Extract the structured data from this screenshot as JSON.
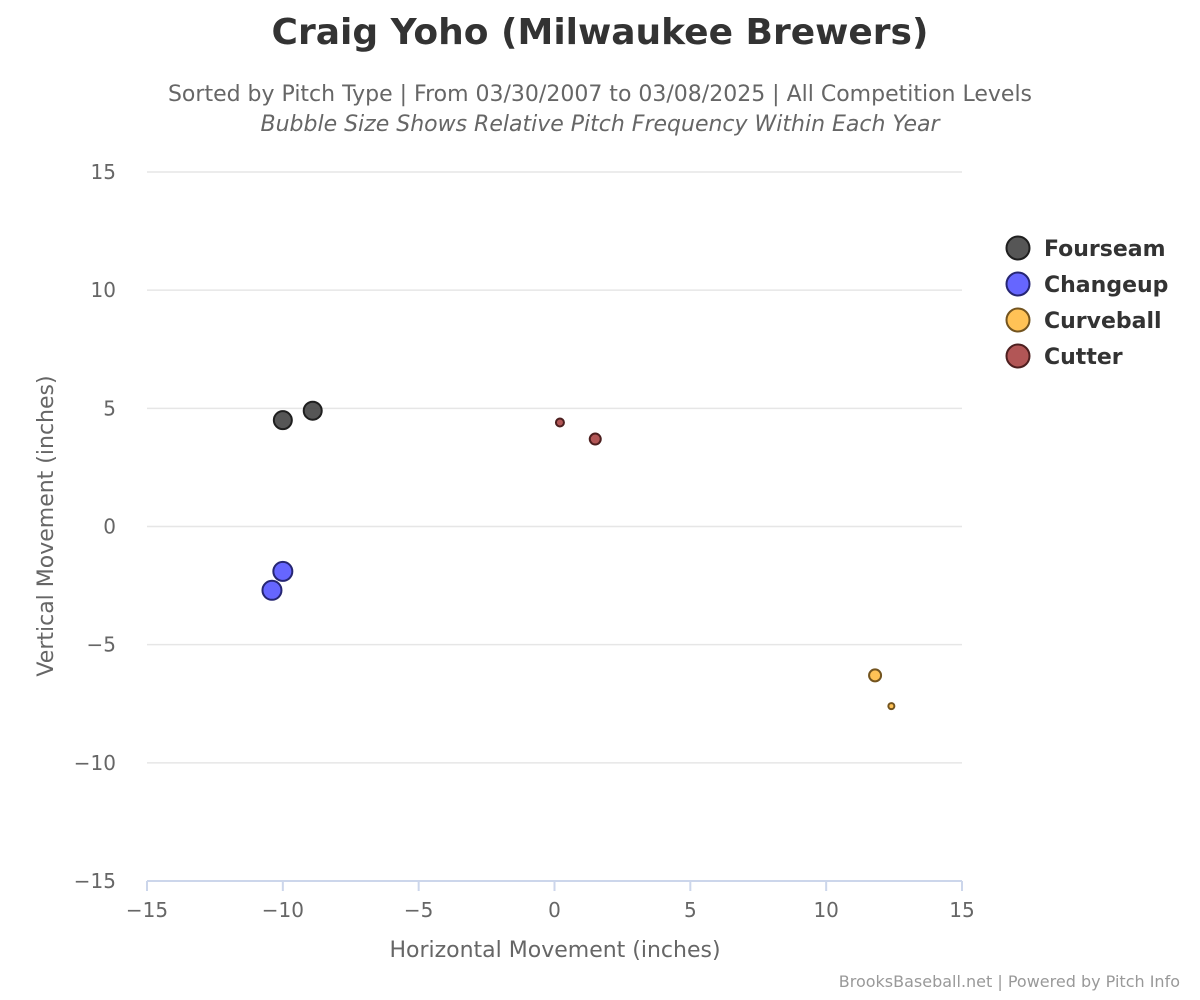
{
  "header": {
    "title": "Craig Yoho (Milwaukee Brewers)",
    "subtitle": "Sorted by Pitch Type | From 03/30/2007 to 03/08/2025 | All Competition Levels",
    "subtitle2": "Bubble Size Shows Relative Pitch Frequency Within Each Year"
  },
  "credits": "BrooksBaseball.net | Powered by Pitch Info",
  "chart_data": {
    "type": "scatter",
    "title": "Craig Yoho (Milwaukee Brewers)",
    "xlabel": "Horizontal Movement (inches)",
    "ylabel": "Vertical Movement (inches)",
    "xlim": [
      -15,
      15
    ],
    "ylim": [
      -15,
      15
    ],
    "x_ticks": [
      -15,
      -10,
      -5,
      0,
      5,
      10,
      15
    ],
    "y_ticks": [
      -15,
      -10,
      -5,
      0,
      5,
      10,
      15
    ],
    "x_tick_labels": [
      "−15",
      "−10",
      "−5",
      "0",
      "5",
      "10",
      "15"
    ],
    "y_tick_labels": [
      "−15",
      "−10",
      "−5",
      "0",
      "5",
      "10",
      "15"
    ],
    "grid": "horizontal",
    "legend_position": "right",
    "series": [
      {
        "name": "Fourseam",
        "color": "#444444",
        "points": [
          {
            "x": -10.0,
            "y": 4.5,
            "size": 0.9
          },
          {
            "x": -8.9,
            "y": 4.9,
            "size": 0.9
          }
        ]
      },
      {
        "name": "Changeup",
        "color": "#5555ff",
        "points": [
          {
            "x": -10.0,
            "y": -1.9,
            "size": 0.95
          },
          {
            "x": -10.4,
            "y": -2.7,
            "size": 0.95
          }
        ]
      },
      {
        "name": "Curveball",
        "color": "#ffbb44",
        "points": [
          {
            "x": 11.8,
            "y": -6.3,
            "size": 0.6
          },
          {
            "x": 12.4,
            "y": -7.6,
            "size": 0.3
          }
        ]
      },
      {
        "name": "Cutter",
        "color": "#aa4444",
        "points": [
          {
            "x": 0.2,
            "y": 4.4,
            "size": 0.4
          },
          {
            "x": 1.5,
            "y": 3.7,
            "size": 0.55
          }
        ]
      }
    ]
  }
}
